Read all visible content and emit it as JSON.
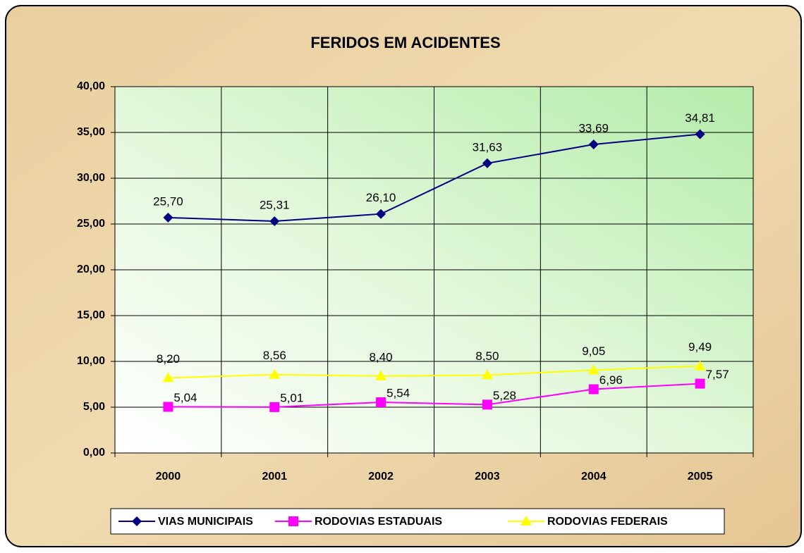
{
  "chart_data": {
    "type": "line",
    "title": "FERIDOS EM ACIDENTES",
    "categories": [
      "2000",
      "2001",
      "2002",
      "2003",
      "2004",
      "2005"
    ],
    "series": [
      {
        "name": "VIAS MUNICIPAIS",
        "color": "#000080",
        "marker": "diamond",
        "values": [
          25.7,
          25.31,
          26.1,
          31.63,
          33.69,
          34.81
        ],
        "value_labels": [
          "25,70",
          "25,31",
          "26,10",
          "31,63",
          "33,69",
          "34,81"
        ]
      },
      {
        "name": "RODOVIAS ESTADUAIS",
        "color": "#ff00ff",
        "marker": "square",
        "values": [
          5.04,
          5.01,
          5.54,
          5.28,
          6.96,
          7.57
        ],
        "value_labels": [
          "5,04",
          "5,01",
          "5,54",
          "5,28",
          "6,96",
          "7,57"
        ]
      },
      {
        "name": "RODOVIAS FEDERAIS",
        "color": "#ffff00",
        "marker": "triangle",
        "values": [
          8.2,
          8.56,
          8.4,
          8.5,
          9.05,
          9.49
        ],
        "value_labels": [
          "8,20",
          "8,56",
          "8,40",
          "8,50",
          "9,05",
          "9,49"
        ]
      }
    ],
    "ylim": [
      0,
      40
    ],
    "yticks": [
      {
        "value": 0,
        "label": "0,00"
      },
      {
        "value": 5,
        "label": "5,00"
      },
      {
        "value": 10,
        "label": "10,00"
      },
      {
        "value": 15,
        "label": "15,00"
      },
      {
        "value": 20,
        "label": "20,00"
      },
      {
        "value": 25,
        "label": "25,00"
      },
      {
        "value": 30,
        "label": "30,00"
      },
      {
        "value": 35,
        "label": "35,00"
      },
      {
        "value": 40,
        "label": "40,00"
      }
    ],
    "grid": true,
    "legend": "bottom"
  }
}
